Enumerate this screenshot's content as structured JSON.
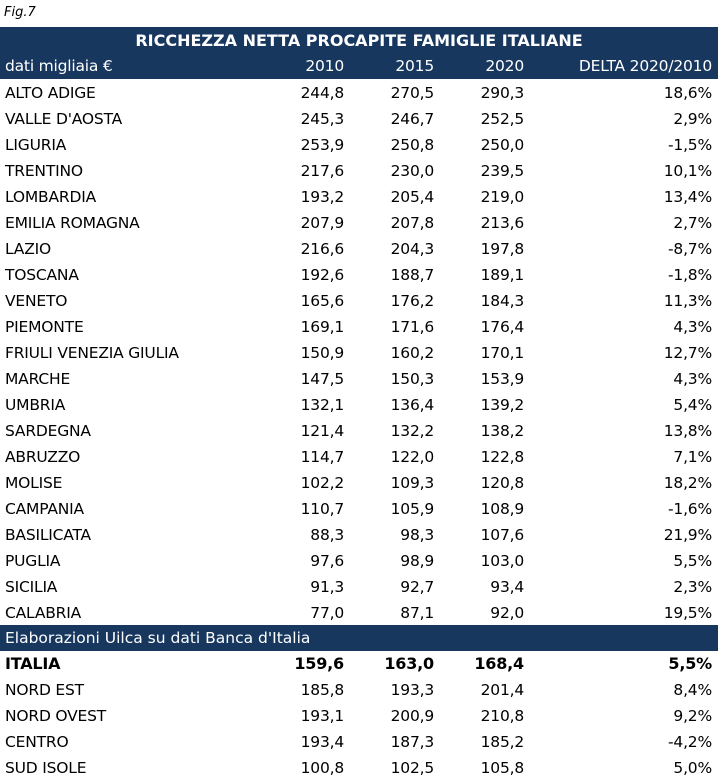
{
  "fig_label": "Fig.7",
  "title": "RICCHEZZA NETTA PROCAPITE FAMIGLIE ITALIANE",
  "header": {
    "label": "dati migliaia €",
    "c1": "2010",
    "c2": "2015",
    "c3": "2020",
    "c4": "DELTA 2020/2010"
  },
  "regions": [
    [
      "ALTO ADIGE",
      "244,8",
      "270,5",
      "290,3",
      "18,6%"
    ],
    [
      "VALLE D'AOSTA",
      "245,3",
      "246,7",
      "252,5",
      "2,9%"
    ],
    [
      "LIGURIA",
      "253,9",
      "250,8",
      "250,0",
      "-1,5%"
    ],
    [
      "TRENTINO",
      "217,6",
      "230,0",
      "239,5",
      "10,1%"
    ],
    [
      "LOMBARDIA",
      "193,2",
      "205,4",
      "219,0",
      "13,4%"
    ],
    [
      "EMILIA ROMAGNA",
      "207,9",
      "207,8",
      "213,6",
      "2,7%"
    ],
    [
      "LAZIO",
      "216,6",
      "204,3",
      "197,8",
      "-8,7%"
    ],
    [
      "TOSCANA",
      "192,6",
      "188,7",
      "189,1",
      "-1,8%"
    ],
    [
      "VENETO",
      "165,6",
      "176,2",
      "184,3",
      "11,3%"
    ],
    [
      "PIEMONTE",
      "169,1",
      "171,6",
      "176,4",
      "4,3%"
    ],
    [
      "FRIULI VENEZIA GIULIA",
      "150,9",
      "160,2",
      "170,1",
      "12,7%"
    ],
    [
      "MARCHE",
      "147,5",
      "150,3",
      "153,9",
      "4,3%"
    ],
    [
      "UMBRIA",
      "132,1",
      "136,4",
      "139,2",
      "5,4%"
    ],
    [
      "SARDEGNA",
      "121,4",
      "132,2",
      "138,2",
      "13,8%"
    ],
    [
      "ABRUZZO",
      "114,7",
      "122,0",
      "122,8",
      "7,1%"
    ],
    [
      "MOLISE",
      "102,2",
      "109,3",
      "120,8",
      "18,2%"
    ],
    [
      "CAMPANIA",
      "110,7",
      "105,9",
      "108,9",
      "-1,6%"
    ],
    [
      "BASILICATA",
      "88,3",
      "98,3",
      "107,6",
      "21,9%"
    ],
    [
      "PUGLIA",
      "97,6",
      "98,9",
      "103,0",
      "5,5%"
    ],
    [
      "SICILIA",
      "91,3",
      "92,7",
      "93,4",
      "2,3%"
    ],
    [
      "CALABRIA",
      "77,0",
      "87,1",
      "92,0",
      "19,5%"
    ]
  ],
  "source": "Elaborazioni Uilca su dati Banca d'Italia",
  "totals": [
    [
      "ITALIA",
      "159,6",
      "163,0",
      "168,4",
      "5,5%"
    ],
    [
      "NORD EST",
      "185,8",
      "193,3",
      "201,4",
      "8,4%"
    ],
    [
      "NORD OVEST",
      "193,1",
      "200,9",
      "210,8",
      "9,2%"
    ],
    [
      "CENTRO",
      "193,4",
      "187,3",
      "185,2",
      "-4,2%"
    ],
    [
      "SUD ISOLE",
      "100,8",
      "102,5",
      "105,8",
      "5,0%"
    ]
  ]
}
